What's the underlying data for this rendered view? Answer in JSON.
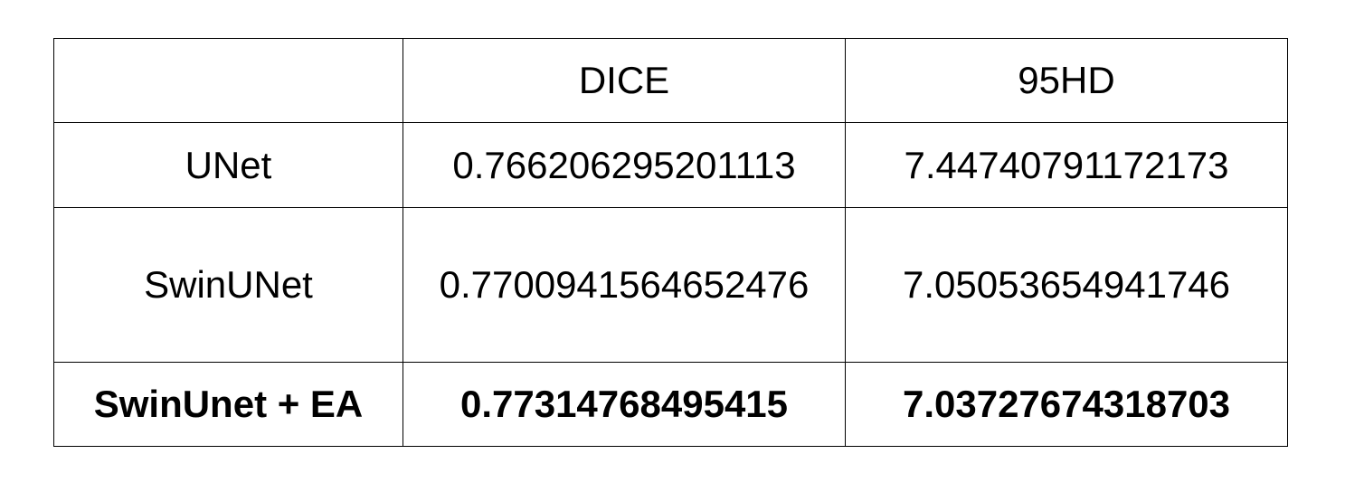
{
  "table": {
    "columns": [
      "",
      "DICE",
      "95HD"
    ],
    "rows": [
      {
        "model": "UNet",
        "dice": "0.766206295201113",
        "hd95": "7.44740791172173",
        "bold": false
      },
      {
        "model": "SwinUNet",
        "dice": "0.7700941564652476",
        "hd95": "7.05053654941746",
        "bold": false
      },
      {
        "model": "SwinUnet + EA",
        "dice": "0.77314768495415",
        "hd95": "7.03727674318703",
        "bold": true
      }
    ]
  }
}
